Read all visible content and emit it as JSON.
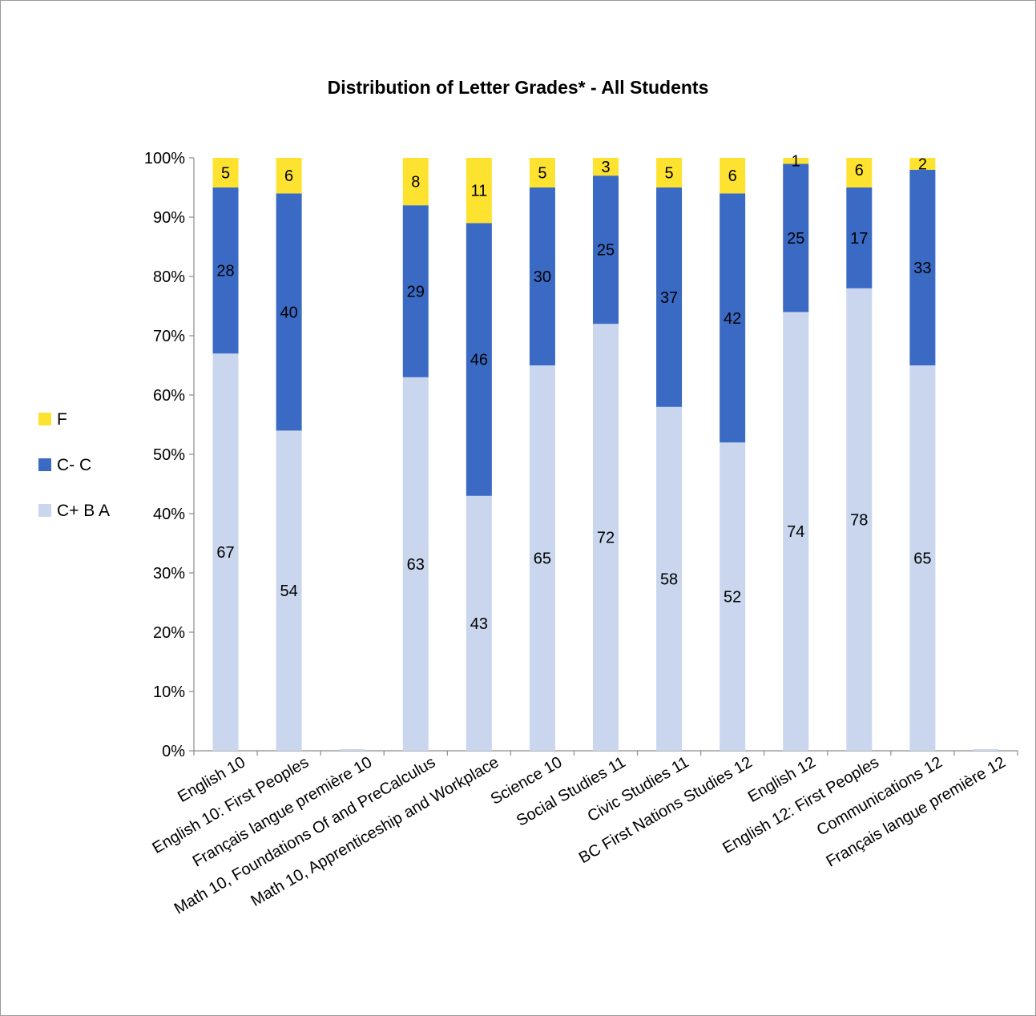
{
  "chart_data": {
    "type": "bar",
    "stacked": true,
    "title": "Distribution of Letter Grades* - All Students",
    "xlabel": "",
    "ylabel": "",
    "ylim": [
      0,
      100
    ],
    "yticks": [
      "0%",
      "10%",
      "20%",
      "30%",
      "40%",
      "50%",
      "60%",
      "70%",
      "80%",
      "90%",
      "100%"
    ],
    "legend_position": "left",
    "categories": [
      "English 10",
      "English 10: First Peoples",
      "Français langue première 10",
      "Math 10, Foundations Of and PreCalculus",
      "Math 10, Apprenticeship and Workplace",
      "Science 10",
      "Social Studies 11",
      "Civic Studies 11",
      "BC First Nations Studies 12",
      "English 12",
      "English 12: First Peoples",
      "Communications 12",
      "Français langue première 12"
    ],
    "series": [
      {
        "name": "C+ B A",
        "color": "#c9d6ee",
        "values": [
          67,
          54,
          0,
          63,
          43,
          65,
          72,
          58,
          52,
          74,
          78,
          65,
          0
        ]
      },
      {
        "name": "C- C",
        "color": "#3a6ac4",
        "values": [
          28,
          40,
          0,
          29,
          46,
          30,
          25,
          37,
          42,
          25,
          17,
          33,
          0
        ]
      },
      {
        "name": "F",
        "color": "#fde230",
        "values": [
          5,
          6,
          0,
          8,
          11,
          5,
          3,
          5,
          6,
          1,
          6,
          2,
          0
        ]
      }
    ],
    "legend_order": [
      "F",
      "C- C",
      "C+ B A"
    ]
  }
}
